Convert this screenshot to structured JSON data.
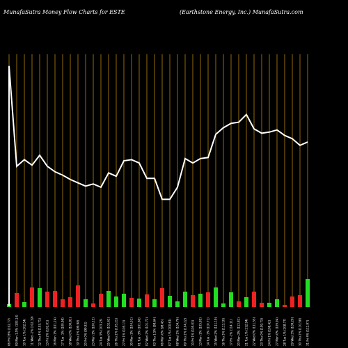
{
  "header": {
    "left": "MunafaSutra  Money Flow  Charts for ESTE",
    "right": "(Earthstone    Energy,  Inc.) MunafaSutra.com"
  },
  "colors": {
    "background": "#000000",
    "grid": "#b8860b",
    "line": "#ffffff",
    "up": "#22dd22",
    "down": "#ee2222"
  },
  "chart_data": {
    "type": "bar",
    "title": "",
    "grid": true,
    "categories": [
      "06 Fri 03% (102.77)",
      "09 Mon 1.5% (103.14)",
      "10 Tue 1% (102.54)",
      "11 Wed -1% (102.19)",
      "12 Thu 4% (103.71)",
      "13 Fri 2% (102.01)",
      "16 Mon 1% (101.24)",
      "17 Tue -1% (100.98)",
      "18 Wed 0% (100.81)",
      "19 Thu 2% (99.98)",
      "20 Fri 0% (99.92)",
      "23 Mon 1% (100.13)",
      "24 Tue 3% (103.23)",
      "25 Wed 0% (102.62)",
      "26 Thu 2% (105.21)",
      "27 Fri 1% (105.13)",
      "30 Mon 1% (104.51)",
      "01 Tue -3% (101.66)",
      "02 Wed 2% (101.72)",
      "03 Thu 1.5% (98.64)",
      "06 Mon 0% (98.43)",
      "07 Tue 1% (100.61)",
      "08 Wed 1% (104.76)",
      "09 Thu 2% (104.22)",
      "10 Fri 1% (105.03)",
      "13 Mon 1% (105.85)",
      "14 Tue -1% (110.71)",
      "15 Wed 2% (111.19)",
      "16 Thu 3% (113.10)",
      "17 Fri -1% (114.11)",
      "20 Mon 2% (112.81)",
      "21 Tue 1% (112.94)",
      "22 Wed 0% (111.55)",
      "23 Thu 0% (109.73)",
      "24 Fri 1% (108.42)",
      "27 Mon 0% (109.94)",
      "28 Tue 1% (108.77)",
      "29 Wed 3% (109.20)",
      "30 Thu 2% (110.58)",
      "31 Fri 4% (112.97)"
    ],
    "series": [
      {
        "kind": "line",
        "values": [
          109.0,
          63.5,
          66.5,
          64.0,
          68.5,
          63.5,
          61.0,
          59.5,
          57.5,
          56.0,
          54.5,
          55.5,
          54.0,
          60.5,
          59.0,
          66.0,
          66.5,
          65.0,
          58.0,
          58.0,
          48.5,
          48.5,
          54.0,
          67.0,
          65.0,
          67.0,
          67.5,
          78.0,
          81.0,
          83.0,
          83.5,
          87.0,
          80.5,
          78.5,
          79.0,
          80.0,
          77.5,
          76.0,
          73.0,
          74.5
        ]
      },
      {
        "kind": "bar",
        "values": [
          4,
          20,
          7,
          28,
          27,
          22,
          23,
          11,
          14,
          31,
          11,
          5,
          19,
          23,
          15,
          19,
          13,
          12,
          18,
          11,
          27,
          16,
          8,
          22,
          17,
          19,
          21,
          28,
          5,
          21,
          8,
          14,
          22,
          6,
          6,
          11,
          3,
          15,
          17,
          40
        ],
        "colors": [
          "up",
          "down",
          "up",
          "down",
          "up",
          "down",
          "down",
          "down",
          "down",
          "down",
          "up",
          "down",
          "down",
          "up",
          "up",
          "up",
          "down",
          "up",
          "down",
          "up",
          "down",
          "up",
          "up",
          "up",
          "down",
          "up",
          "down",
          "up",
          "up",
          "up",
          "down",
          "up",
          "down",
          "down",
          "up",
          "up",
          "down",
          "down",
          "down",
          "up"
        ]
      }
    ]
  }
}
